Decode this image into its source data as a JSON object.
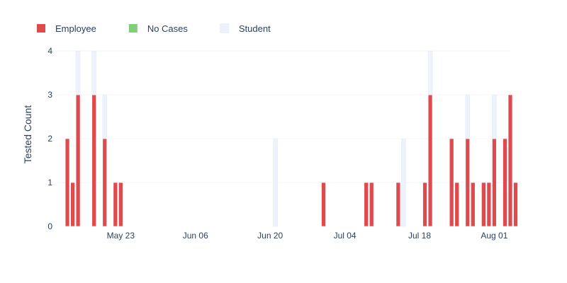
{
  "chart_data": {
    "type": "bar",
    "barmode": "stack",
    "title": "",
    "xlabel": "",
    "ylabel": "Tested Count",
    "ylim": [
      0,
      4
    ],
    "y_ticks": [
      0,
      1,
      2,
      3,
      4
    ],
    "x_range": [
      "2021-05-11",
      "2021-08-04"
    ],
    "x_ticks": [
      {
        "date": "2021-05-23",
        "label": "May 23"
      },
      {
        "date": "2021-06-06",
        "label": "Jun 06"
      },
      {
        "date": "2021-06-20",
        "label": "Jun 20"
      },
      {
        "date": "2021-07-04",
        "label": "Jul 04"
      },
      {
        "date": "2021-07-18",
        "label": "Jul 18"
      },
      {
        "date": "2021-08-01",
        "label": "Aug 01"
      }
    ],
    "grid": true,
    "legend_position": "top-left",
    "series": [
      {
        "name": "Employee",
        "color": "#dd4b4f",
        "points": [
          [
            "2021-05-13",
            2
          ],
          [
            "2021-05-14",
            1
          ],
          [
            "2021-05-15",
            3
          ],
          [
            "2021-05-18",
            3
          ],
          [
            "2021-05-20",
            2
          ],
          [
            "2021-05-22",
            1
          ],
          [
            "2021-05-23",
            1
          ],
          [
            "2021-06-30",
            1
          ],
          [
            "2021-07-08",
            1
          ],
          [
            "2021-07-09",
            1
          ],
          [
            "2021-07-14",
            1
          ],
          [
            "2021-07-19",
            1
          ],
          [
            "2021-07-20",
            3
          ],
          [
            "2021-07-24",
            2
          ],
          [
            "2021-07-25",
            1
          ],
          [
            "2021-07-27",
            2
          ],
          [
            "2021-07-28",
            1
          ],
          [
            "2021-07-30",
            1
          ],
          [
            "2021-07-31",
            1
          ],
          [
            "2021-08-01",
            2
          ],
          [
            "2021-08-03",
            2
          ],
          [
            "2021-08-04",
            3
          ],
          [
            "2021-08-05",
            1
          ]
        ]
      },
      {
        "name": "No Cases",
        "color": "#7fcf7a",
        "points": []
      },
      {
        "name": "Student",
        "color": "#eef2fa",
        "points": [
          [
            "2021-05-15",
            1
          ],
          [
            "2021-05-18",
            1
          ],
          [
            "2021-05-20",
            1
          ],
          [
            "2021-06-21",
            2
          ],
          [
            "2021-07-15",
            2
          ],
          [
            "2021-07-20",
            1
          ],
          [
            "2021-07-27",
            1
          ],
          [
            "2021-08-01",
            1
          ]
        ]
      }
    ]
  }
}
